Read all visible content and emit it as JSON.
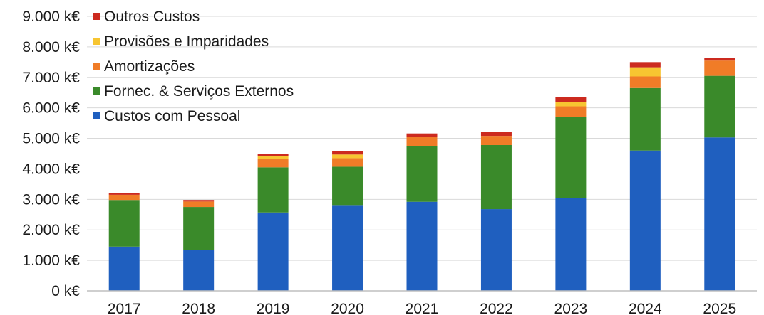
{
  "chart_data": {
    "type": "bar",
    "stacked": true,
    "categories": [
      "2017",
      "2018",
      "2019",
      "2020",
      "2021",
      "2022",
      "2023",
      "2024",
      "2025"
    ],
    "series": [
      {
        "name": "Custos com Pessoal",
        "color": "#1f5fbf",
        "values": [
          1450,
          1350,
          2570,
          2790,
          2920,
          2680,
          3040,
          4600,
          5030
        ]
      },
      {
        "name": "Fornec. & Serviços Externos",
        "color": "#3a8a2a",
        "values": [
          1530,
          1400,
          1480,
          1280,
          1820,
          2100,
          2650,
          2050,
          2020
        ]
      },
      {
        "name": "Amortizações",
        "color": "#f07c27",
        "values": [
          170,
          180,
          270,
          280,
          300,
          300,
          360,
          380,
          500
        ]
      },
      {
        "name": "Provisões e Imparidades",
        "color": "#f7c531",
        "values": [
          0,
          0,
          100,
          120,
          0,
          0,
          150,
          300,
          0
        ]
      },
      {
        "name": "Outros Custos",
        "color": "#cc2a1f",
        "values": [
          50,
          50,
          60,
          110,
          120,
          140,
          150,
          170,
          80
        ]
      }
    ],
    "legend_order": [
      "Outros Custos",
      "Provisões e Imparidades",
      "Amortizações",
      "Fornec. & Serviços Externos",
      "Custos com Pessoal"
    ],
    "y_ticks": [
      0,
      1000,
      2000,
      3000,
      4000,
      5000,
      6000,
      7000,
      8000,
      9000
    ],
    "y_tick_labels": [
      "0 k€",
      "1.000 k€",
      "2.000 k€",
      "3.000 k€",
      "4.000 k€",
      "5.000 k€",
      "6.000 k€",
      "7.000 k€",
      "8.000 k€",
      "9.000 k€"
    ],
    "ylim": [
      0,
      9000
    ],
    "grid": true,
    "legend_position": "top-left"
  }
}
